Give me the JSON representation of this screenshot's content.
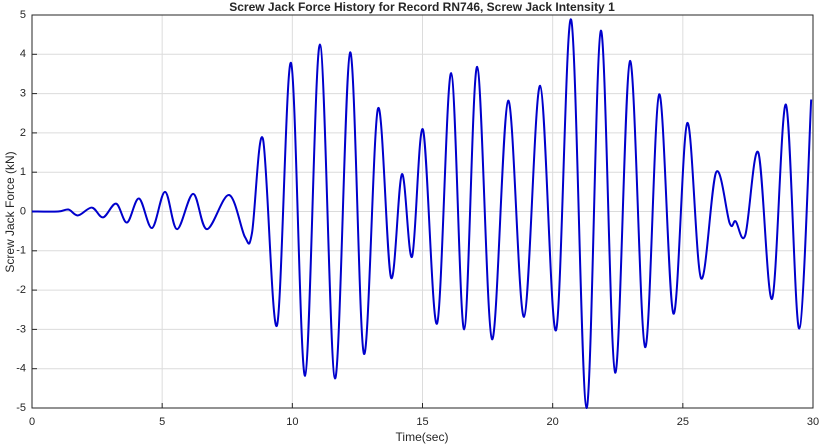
{
  "chart_data": {
    "type": "line",
    "title": "Screw Jack Force History for Record RN746, Screw Jack Intensity 1",
    "x_label": "Time(sec)",
    "y_label": "Screw Jack Force (kN)",
    "xlim": [
      0,
      30
    ],
    "ylim": [
      -5,
      5
    ],
    "xticks": [
      0,
      5,
      10,
      15,
      20,
      25,
      30
    ],
    "yticks": [
      -5,
      -4,
      -3,
      -2,
      -1,
      0,
      1,
      2,
      3,
      4,
      5
    ],
    "grid": true,
    "series": [
      {
        "name": "Screw Jack Force",
        "color": "#0000cc",
        "x": [
          0,
          1,
          1.4,
          1.77,
          2.3,
          2.73,
          3.23,
          3.65,
          4.11,
          4.61,
          5.11,
          5.57,
          6.19,
          6.72,
          7.57,
          8.18,
          8.45,
          8.87,
          9.41,
          9.95,
          10.49,
          11.06,
          11.64,
          12.22,
          12.75,
          13.29,
          13.79,
          14.21,
          14.6,
          15.02,
          15.56,
          16.1,
          16.6,
          17.1,
          17.67,
          18.29,
          18.9,
          19.52,
          20.13,
          20.71,
          21.3,
          21.85,
          22.4,
          22.97,
          23.55,
          24.09,
          24.64,
          25.17,
          25.7,
          26.28,
          26.8,
          27.03,
          27.4,
          27.9,
          28.43,
          28.96,
          29.47,
          29.93
        ],
        "values": [
          0,
          0,
          0.05,
          -0.1,
          0.1,
          -0.15,
          0.2,
          -0.28,
          0.33,
          -0.42,
          0.5,
          -0.45,
          0.45,
          -0.45,
          0.42,
          -0.65,
          -0.55,
          1.85,
          -2.9,
          3.78,
          -4.18,
          4.25,
          -4.25,
          4.05,
          -3.62,
          2.62,
          -1.68,
          0.95,
          -1.15,
          2.08,
          -2.85,
          3.52,
          -3.0,
          3.68,
          -3.25,
          2.82,
          -2.68,
          3.2,
          -3.02,
          4.88,
          -5.0,
          4.6,
          -4.1,
          3.83,
          -3.45,
          2.98,
          -2.6,
          2.25,
          -1.7,
          1.0,
          -0.3,
          -0.25,
          -0.6,
          1.5,
          -2.22,
          2.72,
          -2.98,
          2.85
        ]
      }
    ]
  }
}
